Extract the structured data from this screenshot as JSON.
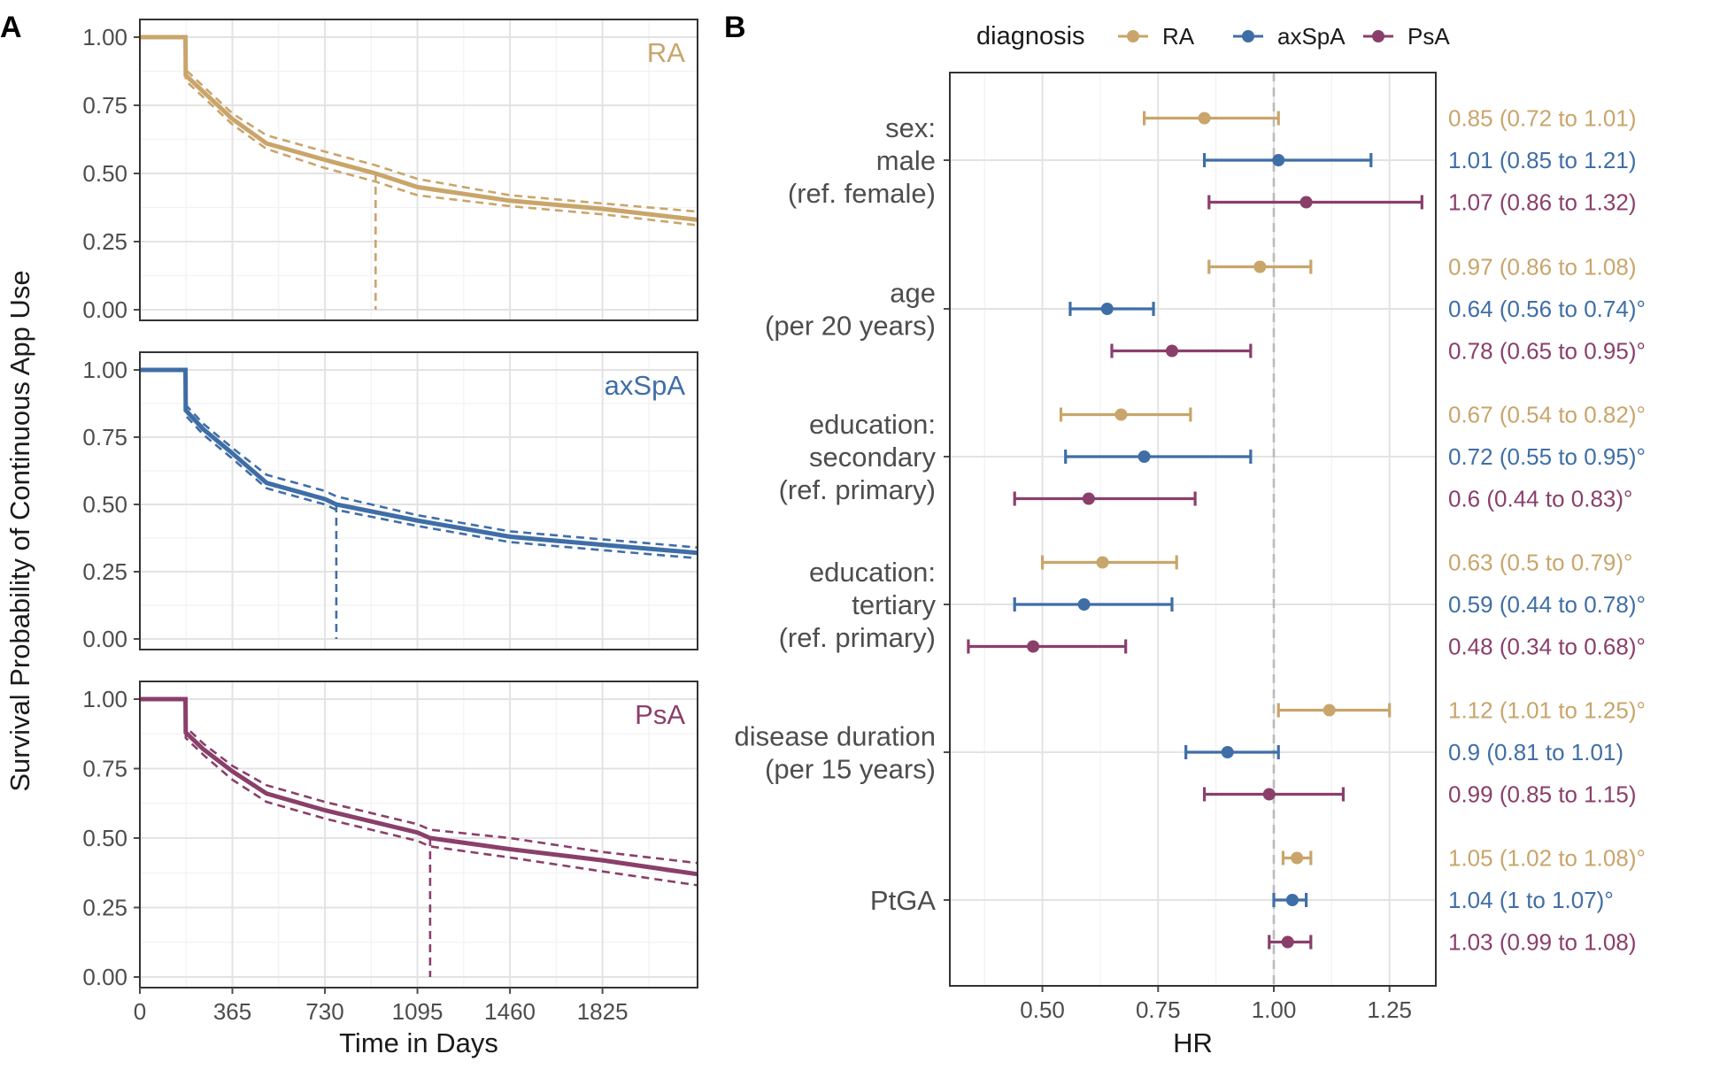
{
  "panel_labels": {
    "a": "A",
    "b": "B"
  },
  "colors": {
    "RA": "#c9a56b",
    "axSpA": "#3f6ea6",
    "PsA": "#8a3f6b"
  },
  "chart_data": [
    {
      "type": "line",
      "panel": "A",
      "ylabel": "Survival Probability of Continuous App Use",
      "xlabel": "Time in Days",
      "xlim": [
        0,
        2200
      ],
      "ylim": [
        0,
        1
      ],
      "x_ticks": [
        "0",
        "365",
        "730",
        "1095",
        "1460",
        "1825"
      ],
      "x_tick_values": [
        0,
        365,
        730,
        1095,
        1460,
        1825
      ],
      "y_ticks": [
        "0.00",
        "0.25",
        "0.50",
        "0.75",
        "1.00"
      ],
      "y_tick_values": [
        0,
        0.25,
        0.5,
        0.75,
        1.0
      ],
      "grid": true,
      "facets": [
        {
          "name": "RA",
          "median_day": 930,
          "x": [
            0,
            180,
            181,
            250,
            365,
            500,
            730,
            930,
            1095,
            1460,
            1825,
            2200
          ],
          "y": [
            1.0,
            1.0,
            0.86,
            0.8,
            0.7,
            0.61,
            0.55,
            0.5,
            0.45,
            0.4,
            0.37,
            0.33
          ],
          "lower": [
            1.0,
            1.0,
            0.84,
            0.78,
            0.68,
            0.59,
            0.52,
            0.47,
            0.42,
            0.38,
            0.35,
            0.31
          ],
          "upper": [
            1.0,
            1.0,
            0.88,
            0.82,
            0.72,
            0.64,
            0.58,
            0.53,
            0.48,
            0.42,
            0.39,
            0.36
          ]
        },
        {
          "name": "axSpA",
          "median_day": 775,
          "x": [
            0,
            180,
            181,
            250,
            365,
            500,
            730,
            775,
            1095,
            1460,
            1825,
            2200
          ],
          "y": [
            1.0,
            1.0,
            0.85,
            0.78,
            0.69,
            0.58,
            0.52,
            0.5,
            0.44,
            0.38,
            0.35,
            0.32
          ],
          "lower": [
            1.0,
            1.0,
            0.83,
            0.76,
            0.67,
            0.56,
            0.5,
            0.48,
            0.42,
            0.36,
            0.33,
            0.3
          ],
          "upper": [
            1.0,
            1.0,
            0.87,
            0.8,
            0.71,
            0.61,
            0.55,
            0.53,
            0.46,
            0.4,
            0.37,
            0.34
          ]
        },
        {
          "name": "PsA",
          "median_day": 1145,
          "x": [
            0,
            180,
            181,
            250,
            365,
            500,
            730,
            1095,
            1145,
            1460,
            1825,
            2200
          ],
          "y": [
            1.0,
            1.0,
            0.88,
            0.82,
            0.74,
            0.66,
            0.6,
            0.52,
            0.5,
            0.46,
            0.42,
            0.37
          ],
          "lower": [
            1.0,
            1.0,
            0.86,
            0.8,
            0.71,
            0.63,
            0.57,
            0.49,
            0.47,
            0.43,
            0.38,
            0.33
          ],
          "upper": [
            1.0,
            1.0,
            0.9,
            0.84,
            0.76,
            0.69,
            0.63,
            0.55,
            0.53,
            0.5,
            0.45,
            0.41
          ]
        }
      ]
    },
    {
      "type": "scatter",
      "panel": "B",
      "subtype": "forest",
      "xlabel": "HR",
      "xlim": [
        0.3,
        1.35
      ],
      "x_ticks": [
        "0.50",
        "0.75",
        "1.00",
        "1.25"
      ],
      "x_tick_values": [
        0.5,
        0.75,
        1.0,
        1.25
      ],
      "reference_line": 1.0,
      "legend": {
        "title": "diagnosis",
        "entries": [
          "RA",
          "axSpA",
          "PsA"
        ],
        "placement": "top"
      },
      "groups": [
        {
          "label": [
            "sex:",
            "male",
            "(ref. female)"
          ],
          "estimates": [
            {
              "dx": "RA",
              "hr": 0.85,
              "lo": 0.72,
              "hi": 1.01,
              "text": "0.85 (0.72 to 1.01)"
            },
            {
              "dx": "axSpA",
              "hr": 1.01,
              "lo": 0.85,
              "hi": 1.21,
              "text": "1.01 (0.85 to 1.21)"
            },
            {
              "dx": "PsA",
              "hr": 1.07,
              "lo": 0.86,
              "hi": 1.32,
              "text": "1.07 (0.86 to 1.32)"
            }
          ]
        },
        {
          "label": [
            "age",
            "(per 20 years)"
          ],
          "estimates": [
            {
              "dx": "RA",
              "hr": 0.97,
              "lo": 0.86,
              "hi": 1.08,
              "text": "0.97 (0.86 to 1.08)"
            },
            {
              "dx": "axSpA",
              "hr": 0.64,
              "lo": 0.56,
              "hi": 0.74,
              "text": "0.64 (0.56 to 0.74)°"
            },
            {
              "dx": "PsA",
              "hr": 0.78,
              "lo": 0.65,
              "hi": 0.95,
              "text": "0.78 (0.65 to 0.95)°"
            }
          ]
        },
        {
          "label": [
            "education:",
            "secondary",
            "(ref. primary)"
          ],
          "estimates": [
            {
              "dx": "RA",
              "hr": 0.67,
              "lo": 0.54,
              "hi": 0.82,
              "text": "0.67 (0.54 to 0.82)°"
            },
            {
              "dx": "axSpA",
              "hr": 0.72,
              "lo": 0.55,
              "hi": 0.95,
              "text": "0.72 (0.55 to 0.95)°"
            },
            {
              "dx": "PsA",
              "hr": 0.6,
              "lo": 0.44,
              "hi": 0.83,
              "text": "0.6 (0.44 to 0.83)°"
            }
          ]
        },
        {
          "label": [
            "education:",
            "tertiary",
            "(ref. primary)"
          ],
          "estimates": [
            {
              "dx": "RA",
              "hr": 0.63,
              "lo": 0.5,
              "hi": 0.79,
              "text": "0.63 (0.5 to 0.79)°"
            },
            {
              "dx": "axSpA",
              "hr": 0.59,
              "lo": 0.44,
              "hi": 0.78,
              "text": "0.59 (0.44 to 0.78)°"
            },
            {
              "dx": "PsA",
              "hr": 0.48,
              "lo": 0.34,
              "hi": 0.68,
              "text": "0.48 (0.34 to 0.68)°"
            }
          ]
        },
        {
          "label": [
            "disease duration",
            "(per 15 years)"
          ],
          "estimates": [
            {
              "dx": "RA",
              "hr": 1.12,
              "lo": 1.01,
              "hi": 1.25,
              "text": "1.12 (1.01 to 1.25)°"
            },
            {
              "dx": "axSpA",
              "hr": 0.9,
              "lo": 0.81,
              "hi": 1.01,
              "text": "0.9 (0.81 to 1.01)"
            },
            {
              "dx": "PsA",
              "hr": 0.99,
              "lo": 0.85,
              "hi": 1.15,
              "text": "0.99 (0.85 to 1.15)"
            }
          ]
        },
        {
          "label": [
            "PtGA"
          ],
          "estimates": [
            {
              "dx": "RA",
              "hr": 1.05,
              "lo": 1.02,
              "hi": 1.08,
              "text": "1.05 (1.02 to 1.08)°"
            },
            {
              "dx": "axSpA",
              "hr": 1.04,
              "lo": 1.0,
              "hi": 1.07,
              "text": "1.04 (1 to 1.07)°"
            },
            {
              "dx": "PsA",
              "hr": 1.03,
              "lo": 0.99,
              "hi": 1.08,
              "text": "1.03 (0.99 to 1.08)"
            }
          ]
        }
      ]
    }
  ]
}
